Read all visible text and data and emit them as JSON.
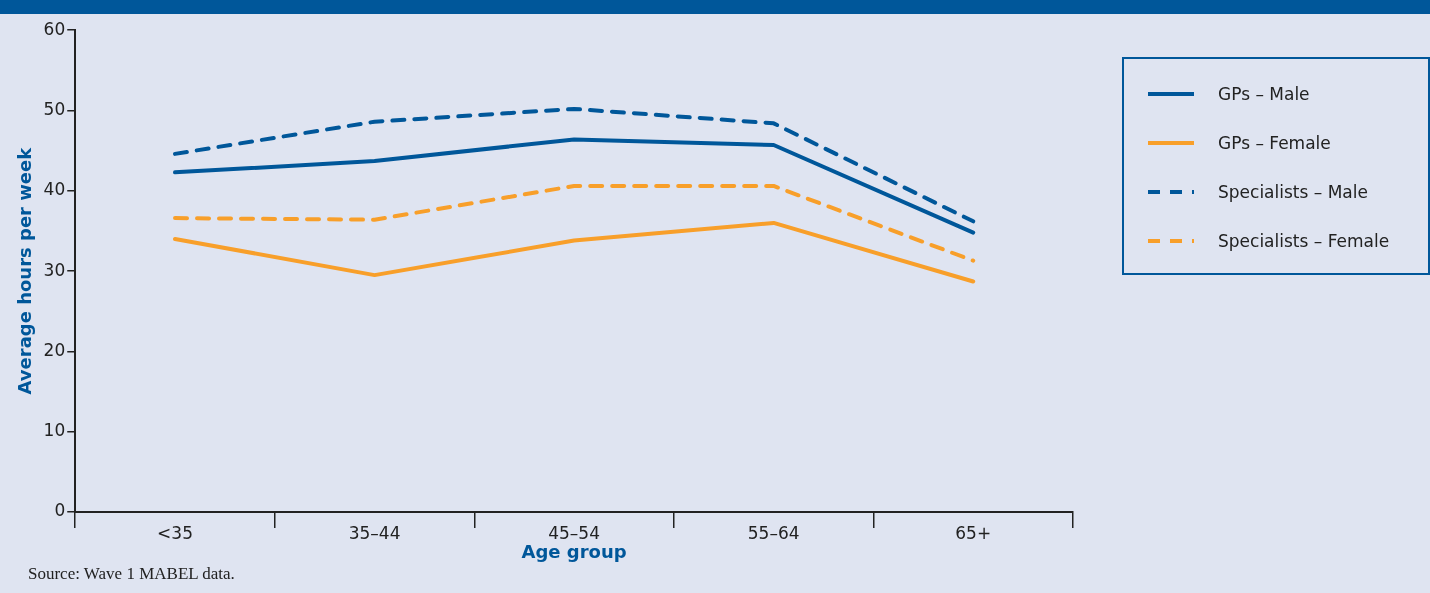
{
  "chart_data": {
    "type": "line",
    "xlabel": "Age group",
    "ylabel": "Average hours per week",
    "categories": [
      "<35",
      "35–44",
      "45–54",
      "55–64",
      "65+"
    ],
    "series": [
      {
        "name": "GPs – Male",
        "color": "#00579a",
        "line_style": "solid",
        "values": [
          42.3,
          43.7,
          46.4,
          45.7,
          34.8
        ]
      },
      {
        "name": "GPs – Female",
        "color": "#f89f2a",
        "line_style": "solid",
        "values": [
          34.0,
          29.5,
          33.8,
          36.0,
          28.7
        ]
      },
      {
        "name": "Specialists – Male",
        "color": "#00579a",
        "line_style": "dashed",
        "values": [
          44.6,
          48.6,
          50.2,
          48.4,
          36.2
        ]
      },
      {
        "name": "Specialists – Female",
        "color": "#f89f2a",
        "line_style": "dashed",
        "values": [
          36.6,
          36.4,
          40.6,
          40.6,
          31.3
        ]
      }
    ],
    "ylim": [
      0,
      60
    ],
    "yticks": [
      0,
      10,
      20,
      30,
      40,
      50,
      60
    ],
    "grid": false,
    "legend": "top right",
    "marker": "none",
    "annotations": [
      "Source: Wave 1 MABEL data."
    ]
  }
}
